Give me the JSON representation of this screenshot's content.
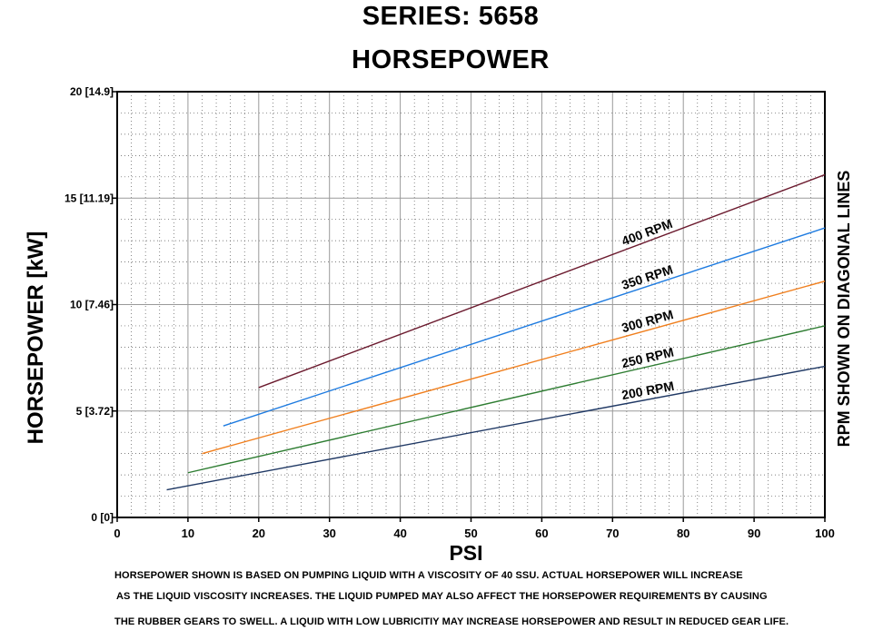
{
  "chart_data": {
    "type": "line",
    "title": "SERIES: 5658",
    "subtitle": "HORSEPOWER",
    "xlabel": "PSI",
    "ylabel": "HORSEPOWER [kW]",
    "right_label": "RPM SHOWN ON DIAGONAL LINES",
    "xlim": [
      0,
      100
    ],
    "ylim": [
      0,
      20
    ],
    "x_ticks": [
      "0",
      "10",
      "20",
      "30",
      "40",
      "50",
      "60",
      "70",
      "80",
      "90",
      "100"
    ],
    "y_ticks": [
      "0 [0]",
      "5 [3.72]",
      "10 [7.46]",
      "15 [11.19]",
      "20 [14.9]"
    ],
    "grid": true,
    "series": [
      {
        "name": "200 RPM",
        "color": "#1f3864",
        "x": [
          7,
          100
        ],
        "y": [
          1.3,
          7.1
        ]
      },
      {
        "name": "250 RPM",
        "color": "#2e7d32",
        "x": [
          10,
          100
        ],
        "y": [
          2.1,
          9.0
        ]
      },
      {
        "name": "300 RPM",
        "color": "#f07f1e",
        "x": [
          12,
          100
        ],
        "y": [
          3.0,
          11.1
        ]
      },
      {
        "name": "350 RPM",
        "color": "#1e7be0",
        "x": [
          15,
          100
        ],
        "y": [
          4.3,
          13.6
        ]
      },
      {
        "name": "400 RPM",
        "color": "#6b1a2e",
        "x": [
          20,
          100
        ],
        "y": [
          6.1,
          16.1
        ]
      }
    ]
  },
  "notes": [
    "HORSEPOWER SHOWN IS BASED ON PUMPING LIQUID WITH A VISCOSITY OF 40 SSU.  ACTUAL HORSEPOWER WILL INCREASE",
    "AS THE LIQUID VISCOSITY INCREASES.  THE LIQUID PUMPED MAY ALSO AFFECT THE HORSEPOWER REQUIREMENTS BY CAUSING",
    "THE RUBBER GEARS TO SWELL.  A LIQUID WITH LOW LUBRICITIY MAY INCREASE HORSEPOWER AND RESULT IN REDUCED GEAR LIFE."
  ]
}
